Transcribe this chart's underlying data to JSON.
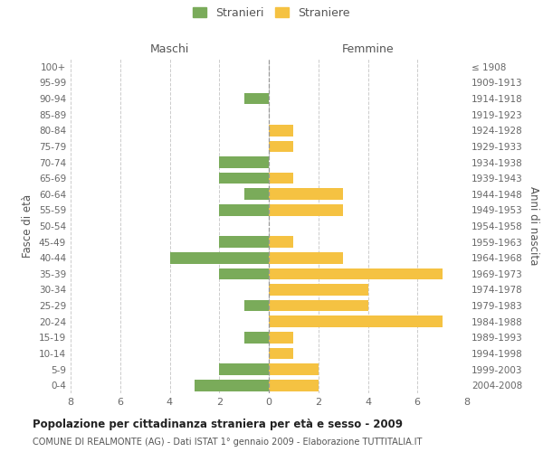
{
  "age_groups": [
    "0-4",
    "5-9",
    "10-14",
    "15-19",
    "20-24",
    "25-29",
    "30-34",
    "35-39",
    "40-44",
    "45-49",
    "50-54",
    "55-59",
    "60-64",
    "65-69",
    "70-74",
    "75-79",
    "80-84",
    "85-89",
    "90-94",
    "95-99",
    "100+"
  ],
  "birth_years": [
    "2004-2008",
    "1999-2003",
    "1994-1998",
    "1989-1993",
    "1984-1988",
    "1979-1983",
    "1974-1978",
    "1969-1973",
    "1964-1968",
    "1959-1963",
    "1954-1958",
    "1949-1953",
    "1944-1948",
    "1939-1943",
    "1934-1938",
    "1929-1933",
    "1924-1928",
    "1919-1923",
    "1914-1918",
    "1909-1913",
    "≤ 1908"
  ],
  "maschi": [
    3,
    2,
    0,
    1,
    0,
    1,
    0,
    2,
    4,
    2,
    0,
    2,
    1,
    2,
    2,
    0,
    0,
    0,
    1,
    0,
    0
  ],
  "femmine": [
    2,
    2,
    1,
    1,
    7,
    4,
    4,
    7,
    3,
    1,
    0,
    3,
    3,
    1,
    0,
    1,
    1,
    0,
    0,
    0,
    0
  ],
  "male_color": "#7aab5a",
  "female_color": "#f5c242",
  "background_color": "#ffffff",
  "grid_color": "#cccccc",
  "title": "Popolazione per cittadinanza straniera per età e sesso - 2009",
  "subtitle": "COMUNE DI REALMONTE (AG) - Dati ISTAT 1° gennaio 2009 - Elaborazione TUTTITALIA.IT",
  "xlabel_left": "Maschi",
  "xlabel_right": "Femmine",
  "ylabel_left": "Fasce di età",
  "ylabel_right": "Anni di nascita",
  "legend_male": "Stranieri",
  "legend_female": "Straniere",
  "xlim": 8
}
